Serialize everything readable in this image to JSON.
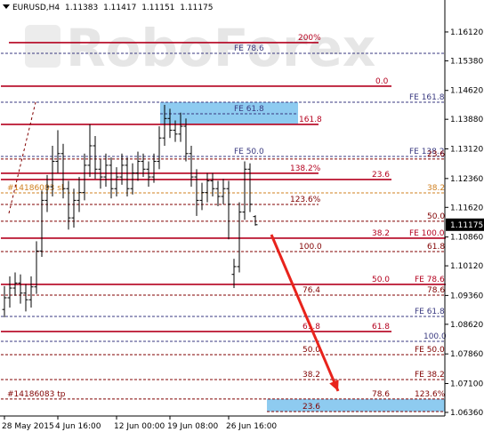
{
  "chart_data": {
    "type": "ohlc",
    "symbol": "EURUSD,H4",
    "watermark": "RoboForex",
    "bar_color": "#000000",
    "xlim": [
      -0.667,
      82.667
    ],
    "ylim": [
      1.0629,
      1.1694
    ],
    "xticks": [
      {
        "value": 0,
        "label": "28 May 2015"
      },
      {
        "value": 10,
        "label": "4 Jun 16:00"
      },
      {
        "value": 21,
        "label": "12 Jun 00:00"
      },
      {
        "value": 31,
        "label": "19 Jun 08:00"
      },
      {
        "value": 42,
        "label": "26 Jun 16:00"
      }
    ],
    "yticks": [
      {
        "value": 1.1612,
        "label": "1.16120"
      },
      {
        "value": 1.1538,
        "label": "1.15380"
      },
      {
        "value": 1.1462,
        "label": "1.14620"
      },
      {
        "value": 1.1388,
        "label": "1.13880"
      },
      {
        "value": 1.1312,
        "label": "1.13120"
      },
      {
        "value": 1.1236,
        "label": "1.12360"
      },
      {
        "value": 1.1162,
        "label": "1.11620"
      },
      {
        "value": 1.1086,
        "label": "1.10860"
      },
      {
        "value": 1.1012,
        "label": "1.10120"
      },
      {
        "value": 1.0936,
        "label": "1.09360"
      },
      {
        "value": 1.0862,
        "label": "1.08620"
      },
      {
        "value": 1.0786,
        "label": "1.07860"
      },
      {
        "value": 1.071,
        "label": "1.07100"
      },
      {
        "value": 1.0636,
        "label": "1.06360"
      }
    ],
    "open": [
      1.09,
      1.093,
      1.0955,
      1.0968,
      1.0942,
      1.0925,
      1.0958,
      1.105,
      1.118,
      1.1215,
      1.128,
      1.13,
      1.121,
      1.1135,
      1.118,
      1.12,
      1.127,
      1.132,
      1.126,
      1.124,
      1.127,
      1.121,
      1.124,
      1.127,
      1.121,
      1.125,
      1.128,
      1.126,
      1.124,
      1.128,
      1.134,
      1.139,
      1.136,
      1.135,
      1.137,
      1.13,
      1.124,
      1.118,
      1.12,
      1.123,
      1.121,
      1.119,
      1.121,
      1.099,
      1.101,
      1.115,
      1.126,
      1.11383
    ],
    "high": [
      1.096,
      1.0985,
      1.0995,
      1.099,
      1.0965,
      1.0985,
      1.1075,
      1.1205,
      1.1245,
      1.132,
      1.136,
      1.1325,
      1.123,
      1.121,
      1.124,
      1.13,
      1.1375,
      1.1345,
      1.1285,
      1.13,
      1.129,
      1.1265,
      1.13,
      1.129,
      1.1275,
      1.1305,
      1.13,
      1.128,
      1.13,
      1.137,
      1.1425,
      1.1415,
      1.1385,
      1.1405,
      1.139,
      1.132,
      1.126,
      1.1225,
      1.125,
      1.125,
      1.123,
      1.1235,
      1.123,
      1.103,
      1.1175,
      1.128,
      1.1275,
      1.11417
    ],
    "low": [
      1.088,
      1.0905,
      1.0935,
      1.0915,
      1.0895,
      1.0905,
      1.094,
      1.1035,
      1.115,
      1.119,
      1.125,
      1.1185,
      1.1105,
      1.111,
      1.115,
      1.118,
      1.124,
      1.1235,
      1.121,
      1.1215,
      1.1185,
      1.119,
      1.122,
      1.119,
      1.1195,
      1.123,
      1.124,
      1.1215,
      1.1225,
      1.126,
      1.132,
      1.134,
      1.133,
      1.133,
      1.128,
      1.1215,
      1.114,
      1.1155,
      1.1175,
      1.119,
      1.1165,
      1.117,
      1.108,
      1.0955,
      1.0995,
      1.113,
      1.115,
      1.11151
    ],
    "close": [
      1.093,
      1.0955,
      1.0968,
      1.0942,
      1.0925,
      1.0958,
      1.105,
      1.118,
      1.1215,
      1.128,
      1.13,
      1.121,
      1.1135,
      1.118,
      1.12,
      1.127,
      1.132,
      1.126,
      1.124,
      1.127,
      1.121,
      1.124,
      1.127,
      1.121,
      1.125,
      1.128,
      1.126,
      1.124,
      1.128,
      1.134,
      1.139,
      1.136,
      1.135,
      1.137,
      1.13,
      1.124,
      1.118,
      1.12,
      1.123,
      1.121,
      1.119,
      1.121,
      1.117,
      1.101,
      1.115,
      1.126,
      1.117,
      1.11175
    ],
    "zones": [
      {
        "x": [
          29.17,
          55
        ],
        "y": [
          1.14318,
          1.13748
        ],
        "color": "#8ecbf0"
      },
      {
        "x": [
          49.17,
          82.5
        ],
        "y": [
          1.06702,
          1.06382
        ],
        "color": "#8ecbf0"
      }
    ],
    "arrow": {
      "from": [
        50,
        1.1092
      ],
      "to": [
        62.5,
        1.06907
      ],
      "color": "#e8231c"
    },
    "levels": [
      {
        "price": 1.15846,
        "x": [
          0.83,
          58.83
        ],
        "color": "#b4001e",
        "dash": false,
        "labels": [
          {
            "text": "200%",
            "x": 55
          }
        ]
      },
      {
        "price": 1.15573,
        "x": [
          -0.667,
          82.667
        ],
        "color": "#3a3a80",
        "dash": true,
        "labels": [
          {
            "text": "FE 78.6",
            "x": 43
          }
        ]
      },
      {
        "price": 1.14729,
        "x": [
          -0.667,
          72.5
        ],
        "color": "#b4001e",
        "dash": false,
        "labels": [
          {
            "text": "0.0",
            "x": 69.5
          }
        ]
      },
      {
        "price": 1.14318,
        "x": [
          -0.667,
          82.667
        ],
        "color": "#3a3a80",
        "dash": true,
        "labels": [
          {
            "text": "FE 161.8",
            "x": 75.83
          }
        ]
      },
      {
        "price": 1.14022,
        "x": [
          29.17,
          55
        ],
        "color": "#3a3a80",
        "dash": true,
        "labels": [
          {
            "text": "FE 61.8",
            "x": 43
          }
        ]
      },
      {
        "price": 1.13748,
        "x": [
          -0.667,
          58.83
        ],
        "color": "#b4001e",
        "dash": false,
        "labels": [
          {
            "text": "161.8",
            "x": 55.17
          }
        ]
      },
      {
        "price": 1.12927,
        "x": [
          -0.667,
          82.667
        ],
        "color": "#3a3a80",
        "dash": true,
        "labels": [
          {
            "text": "FE 50.0",
            "x": 43
          },
          {
            "text": "FE 138.2",
            "x": 75.83
          }
        ]
      },
      {
        "price": 1.1286,
        "x": [
          -0.667,
          82.667
        ],
        "color": "#800000",
        "dash": true,
        "labels": [
          {
            "text": "23.6",
            "x": 79.17
          }
        ]
      },
      {
        "price": 1.12494,
        "x": [
          -0.667,
          58.83
        ],
        "color": "#b4001e",
        "dash": false,
        "labels": [
          {
            "text": "138.2%",
            "x": 53.5
          }
        ]
      },
      {
        "price": 1.12334,
        "x": [
          -0.667,
          72.5
        ],
        "color": "#b4001e",
        "dash": false,
        "labels": [
          {
            "text": "23.6",
            "x": 68.83
          }
        ]
      },
      {
        "price": 1.11992,
        "x": [
          -0.667,
          82.667
        ],
        "color": "#d08020",
        "dash": true,
        "labels": [
          {
            "text": "#14186083 sl",
            "x": 0.5
          },
          {
            "text": "38.2",
            "x": 79.17
          }
        ]
      },
      {
        "price": 1.11696,
        "x": [
          -0.667,
          58.83
        ],
        "color": "#800000",
        "dash": true,
        "labels": [
          {
            "text": "123.6%",
            "x": 53.5
          }
        ]
      },
      {
        "price": 1.11263,
        "x": [
          -0.667,
          82.667
        ],
        "color": "#800000",
        "dash": true,
        "labels": [
          {
            "text": "50.0",
            "x": 79.17
          }
        ]
      },
      {
        "price": 1.10829,
        "x": [
          -0.667,
          82.667
        ],
        "color": "#b4001e",
        "dash": false,
        "labels": [
          {
            "text": "38.2",
            "x": 68.83
          },
          {
            "text": "FE 100.0",
            "x": 75.83
          }
        ]
      },
      {
        "price": 1.10487,
        "x": [
          -0.667,
          82.667
        ],
        "color": "#800000",
        "dash": true,
        "labels": [
          {
            "text": "100.0",
            "x": 55.17
          },
          {
            "text": "61.8",
            "x": 79.17
          }
        ]
      },
      {
        "price": 1.09643,
        "x": [
          -0.667,
          82.667
        ],
        "color": "#b4001e",
        "dash": false,
        "labels": [
          {
            "text": "50.0",
            "x": 68.83
          },
          {
            "text": "FE 78.6",
            "x": 76.83
          }
        ]
      },
      {
        "price": 1.0937,
        "x": [
          -0.667,
          82.667
        ],
        "color": "#800000",
        "dash": true,
        "labels": [
          {
            "text": "76.4",
            "x": 55.83
          },
          {
            "text": "78.6",
            "x": 79.17
          }
        ]
      },
      {
        "price": 1.08822,
        "x": [
          -0.667,
          82.667
        ],
        "color": "#3a3a80",
        "dash": true,
        "labels": [
          {
            "text": "FE 61.8",
            "x": 76.83
          }
        ]
      },
      {
        "price": 1.08435,
        "x": [
          -0.667,
          72.5
        ],
        "color": "#b4001e",
        "dash": false,
        "labels": [
          {
            "text": "61.8",
            "x": 55.83
          },
          {
            "text": "61.8",
            "x": 68.83
          }
        ]
      },
      {
        "price": 1.08184,
        "x": [
          -0.667,
          82.667
        ],
        "color": "#3a3a80",
        "dash": true,
        "labels": [
          {
            "text": "100.0",
            "x": 78.5
          }
        ]
      },
      {
        "price": 1.07842,
        "x": [
          -0.667,
          82.667
        ],
        "color": "#800000",
        "dash": true,
        "labels": [
          {
            "text": "50.0",
            "x": 55.83
          },
          {
            "text": "FE 50.0",
            "x": 76.83
          }
        ]
      },
      {
        "price": 1.07203,
        "x": [
          -0.667,
          82.667
        ],
        "color": "#800000",
        "dash": true,
        "labels": [
          {
            "text": "38.2",
            "x": 55.83
          },
          {
            "text": "FE 38.2",
            "x": 76.83
          }
        ]
      },
      {
        "price": 1.06702,
        "x": [
          -0.667,
          82.667
        ],
        "color": "#800000",
        "dash": true,
        "labels": [
          {
            "text": "#14186083 tp",
            "x": 0.5
          },
          {
            "text": "78.6",
            "x": 68.83
          },
          {
            "text": "123.6%",
            "x": 76.83
          }
        ]
      },
      {
        "price": 1.06382,
        "x": [
          49.17,
          82.5
        ],
        "color": "#800000",
        "dash": true,
        "labels": [
          {
            "text": "23.6",
            "x": 55.83
          }
        ]
      }
    ]
  }
}
